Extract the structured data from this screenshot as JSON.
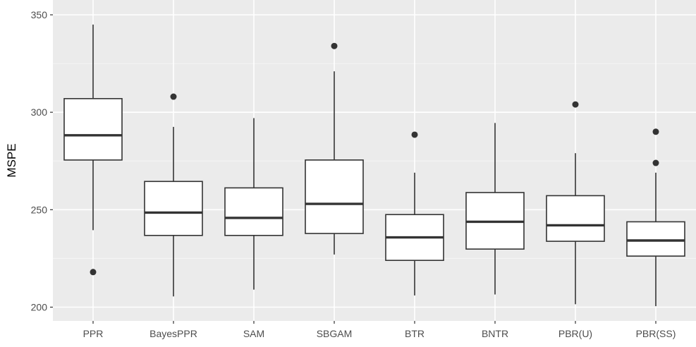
{
  "chart_data": {
    "type": "boxplot",
    "ylabel": "MSPE",
    "xlabel": "",
    "ylim": [
      195,
      355
    ],
    "yticks": [
      200,
      250,
      300,
      350
    ],
    "grid": true,
    "legend": "none",
    "colors": {
      "panel_background": "#ebebeb",
      "grid_major": "#ffffff",
      "grid_minor": "#f5f5f5",
      "box_fill": "#ffffff",
      "box_stroke": "#333333",
      "outlier": "#333333"
    },
    "categories": [
      "PPR",
      "BayesPPR",
      "SAM",
      "SBGAM",
      "BTR",
      "BNTR",
      "PBR(U)",
      "PBR(SS)"
    ],
    "boxes": [
      {
        "category": "PPR",
        "min": 239.5,
        "q1": 275.5,
        "median": 288.2,
        "q3": 307.0,
        "max": 345.0,
        "outliers": [
          218.0
        ]
      },
      {
        "category": "BayesPPR",
        "min": 205.5,
        "q1": 236.8,
        "median": 248.5,
        "q3": 264.5,
        "max": 292.5,
        "outliers": [
          308.0
        ]
      },
      {
        "category": "SAM",
        "min": 209.0,
        "q1": 236.8,
        "median": 245.8,
        "q3": 261.2,
        "max": 297.0,
        "outliers": []
      },
      {
        "category": "SBGAM",
        "min": 227.0,
        "q1": 237.8,
        "median": 253.0,
        "q3": 275.5,
        "max": 321.0,
        "outliers": [
          334.0
        ]
      },
      {
        "category": "BTR",
        "min": 206.0,
        "q1": 224.0,
        "median": 235.8,
        "q3": 247.5,
        "max": 269.0,
        "outliers": [
          288.5
        ]
      },
      {
        "category": "BNTR",
        "min": 206.5,
        "q1": 229.8,
        "median": 243.8,
        "q3": 258.8,
        "max": 294.5,
        "outliers": []
      },
      {
        "category": "PBR(U)",
        "min": 201.5,
        "q1": 233.8,
        "median": 242.0,
        "q3": 257.2,
        "max": 279.0,
        "outliers": [
          304.0
        ]
      },
      {
        "category": "PBR(SS)",
        "min": 200.5,
        "q1": 226.2,
        "median": 234.2,
        "q3": 243.8,
        "max": 269.0,
        "outliers": [
          274.0,
          290.0
        ]
      }
    ]
  }
}
